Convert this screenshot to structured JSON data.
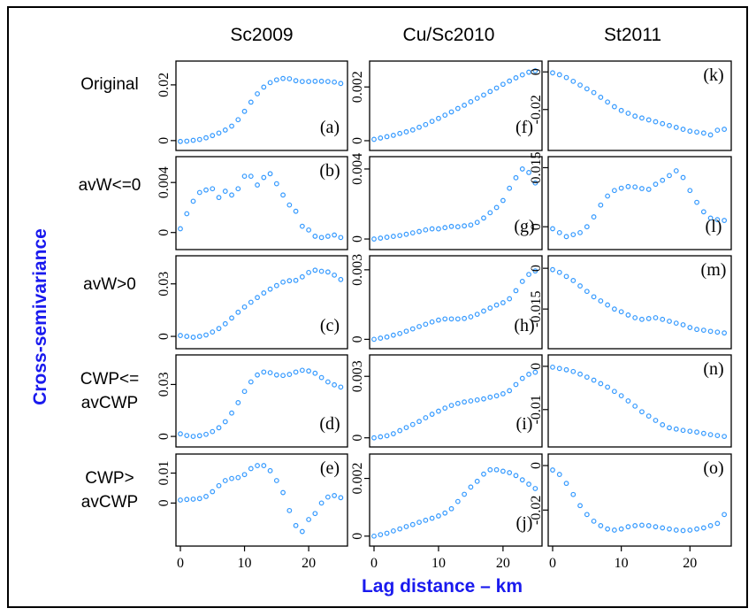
{
  "chart_data": {
    "type": "scatter",
    "column_titles": [
      "Sc2009",
      "Cu/Sc2010",
      "St2011"
    ],
    "row_labels": [
      [
        "Original"
      ],
      [
        "avW<=0"
      ],
      [
        "avW>0"
      ],
      [
        "CWP<=",
        "avCWP"
      ],
      [
        "CWP>",
        "avCWP"
      ]
    ],
    "xlabel": "Lag distance – km",
    "ylabel": "Cross-semivariance",
    "xlim": [
      0,
      25.5
    ],
    "x": [
      0,
      1,
      2,
      3,
      4,
      5,
      6,
      7,
      8,
      9,
      10,
      11,
      12,
      13,
      14,
      15,
      16,
      17,
      18,
      19,
      20,
      21,
      22,
      23,
      24,
      25
    ],
    "x_ticks": [
      "0",
      "10",
      "20"
    ],
    "x_tick_values": [
      0,
      10,
      20
    ],
    "marker_color": "#3399ff",
    "panels": [
      {
        "id": "a",
        "letter": "(a)",
        "ylim": [
          -0.001,
          0.026
        ],
        "yticks": [
          "0",
          "0.02"
        ],
        "ytick_values": [
          0,
          0.02
        ],
        "values": [
          -0.0003,
          -0.0002,
          0.0001,
          0.0004,
          0.001,
          0.0018,
          0.0027,
          0.0038,
          0.0052,
          0.0075,
          0.0105,
          0.0138,
          0.0168,
          0.0192,
          0.0208,
          0.0218,
          0.0223,
          0.0222,
          0.0215,
          0.0212,
          0.0212,
          0.0213,
          0.0213,
          0.0212,
          0.021,
          0.0205
        ]
      },
      {
        "id": "f",
        "letter": "(f)",
        "ylim": [
          -0.0001,
          0.0027
        ],
        "yticks": [
          "0",
          "0.002"
        ],
        "ytick_values": [
          0,
          0.002
        ],
        "values": [
          5e-05,
          0.0001,
          0.00015,
          0.0002,
          0.00027,
          0.00033,
          0.0004,
          0.0005,
          0.0006,
          0.00072,
          0.00083,
          0.00095,
          0.00107,
          0.0012,
          0.00132,
          0.00145,
          0.00158,
          0.0017,
          0.00183,
          0.00196,
          0.0021,
          0.00222,
          0.00234,
          0.00245,
          0.00255,
          0.0026
        ]
      },
      {
        "id": "k",
        "letter": "(k)",
        "ylim": [
          -0.038,
          0.002
        ],
        "yticks": [
          "0",
          "-0.02"
        ],
        "ytick_values": [
          0,
          -0.02
        ],
        "values": [
          -0.0005,
          -0.0015,
          -0.003,
          -0.005,
          -0.007,
          -0.009,
          -0.011,
          -0.0135,
          -0.016,
          -0.0185,
          -0.0205,
          -0.022,
          -0.0235,
          -0.0245,
          -0.0255,
          -0.0265,
          -0.0275,
          -0.0285,
          -0.0295,
          -0.0305,
          -0.0315,
          -0.032,
          -0.0325,
          -0.0335,
          -0.031,
          -0.0305
        ]
      },
      {
        "id": "b",
        "letter": "(b)",
        "ylim": [
          -0.0008,
          0.0055
        ],
        "yticks": [
          "0",
          "0.004"
        ],
        "ytick_values": [
          0,
          0.004
        ],
        "values": [
          0.0003,
          0.0015,
          0.0025,
          0.0032,
          0.0034,
          0.0035,
          0.0028,
          0.0033,
          0.003,
          0.0035,
          0.0045,
          0.0045,
          0.0038,
          0.0044,
          0.0047,
          0.0039,
          0.003,
          0.0022,
          0.0017,
          0.0005,
          0.0002,
          -0.0003,
          -0.0004,
          -0.0003,
          -0.0002,
          -0.0004
        ]
      },
      {
        "id": "g",
        "letter": "(g)",
        "ylim": [
          -0.0002,
          0.0043
        ],
        "yticks": [
          "0",
          "0.004"
        ],
        "ytick_values": [
          0,
          0.004
        ],
        "values": [
          0.0,
          5e-05,
          0.0001,
          0.00015,
          0.0002,
          0.00027,
          0.00035,
          0.00043,
          0.00052,
          0.00058,
          0.00058,
          0.00065,
          0.00072,
          0.0007,
          0.00075,
          0.0008,
          0.00095,
          0.0012,
          0.0015,
          0.0018,
          0.0022,
          0.0029,
          0.0035,
          0.004,
          0.0038,
          0.0032
        ]
      },
      {
        "id": "l",
        "letter": "(l)",
        "ylim": [
          -0.004,
          0.016
        ],
        "yticks": [
          "0",
          "0.015"
        ],
        "ytick_values": [
          0,
          0.015
        ],
        "values": [
          -0.0005,
          -0.0015,
          -0.0025,
          -0.002,
          -0.0015,
          0.0,
          0.0025,
          0.0055,
          0.0078,
          0.0092,
          0.0098,
          0.0102,
          0.0101,
          0.0097,
          0.0095,
          0.0108,
          0.0118,
          0.013,
          0.0142,
          0.0125,
          0.0092,
          0.0062,
          0.0038,
          0.0022,
          0.0018,
          0.0016
        ]
      },
      {
        "id": "c",
        "letter": "(c)",
        "ylim": [
          -0.003,
          0.042
        ],
        "yticks": [
          "0",
          "0.03"
        ],
        "ytick_values": [
          0,
          0.03
        ],
        "values": [
          0.0005,
          0.0,
          -0.0005,
          0.0,
          0.0008,
          0.0025,
          0.0045,
          0.0072,
          0.0105,
          0.0138,
          0.0168,
          0.0195,
          0.0222,
          0.0248,
          0.027,
          0.029,
          0.031,
          0.0318,
          0.032,
          0.034,
          0.0365,
          0.0378,
          0.0372,
          0.0368,
          0.035,
          0.0325
        ]
      },
      {
        "id": "h",
        "letter": "(h)",
        "ylim": [
          -0.0001,
          0.0033
        ],
        "yticks": [
          "0",
          "0.003"
        ],
        "ytick_values": [
          0,
          0.003
        ],
        "values": [
          0.0,
          5e-05,
          0.0001,
          0.00018,
          0.00025,
          0.00035,
          0.00045,
          0.00055,
          0.00065,
          0.00075,
          0.00083,
          0.00088,
          0.00088,
          0.00088,
          0.0009,
          0.00097,
          0.00108,
          0.00122,
          0.00135,
          0.00148,
          0.00158,
          0.00175,
          0.0021,
          0.0025,
          0.0028,
          0.00295
        ]
      },
      {
        "id": "m",
        "letter": "(m)",
        "ylim": [
          -0.027,
          0.002
        ],
        "yticks": [
          "-0.015",
          "0"
        ],
        "ytick_values": [
          -0.015,
          0
        ],
        "values": [
          -0.0005,
          -0.0015,
          -0.003,
          -0.0045,
          -0.0065,
          -0.0085,
          -0.0105,
          -0.012,
          -0.0135,
          -0.015,
          -0.016,
          -0.0172,
          -0.0182,
          -0.0188,
          -0.0185,
          -0.0182,
          -0.0188,
          -0.0195,
          -0.0202,
          -0.0208,
          -0.0218,
          -0.0225,
          -0.0228,
          -0.0232,
          -0.0235,
          -0.0238
        ]
      },
      {
        "id": "d",
        "letter": "(d)",
        "ylim": [
          -0.002,
          0.043
        ],
        "yticks": [
          "0",
          "0.03"
        ],
        "ytick_values": [
          0,
          0.03
        ],
        "values": [
          0.0015,
          0.0005,
          0.0,
          0.0004,
          0.0012,
          0.0028,
          0.005,
          0.0085,
          0.0135,
          0.0195,
          0.026,
          0.0315,
          0.0355,
          0.0372,
          0.0368,
          0.0355,
          0.0352,
          0.0358,
          0.0372,
          0.0382,
          0.0378,
          0.0365,
          0.034,
          0.0315,
          0.0298,
          0.0285
        ]
      },
      {
        "id": "i",
        "letter": "(i)",
        "ylim": [
          -0.0001,
          0.0037
        ],
        "yticks": [
          "0",
          "0.003"
        ],
        "ytick_values": [
          0,
          0.003
        ],
        "values": [
          0.0,
          5e-05,
          0.0001,
          0.0002,
          0.00035,
          0.0005,
          0.00065,
          0.0008,
          0.00098,
          0.00115,
          0.0013,
          0.00145,
          0.00158,
          0.00168,
          0.00175,
          0.0018,
          0.00185,
          0.0019,
          0.00198,
          0.00205,
          0.00215,
          0.0023,
          0.0026,
          0.0029,
          0.0031,
          0.0032
        ]
      },
      {
        "id": "n",
        "letter": "(n)",
        "ylim": [
          -0.017,
          0.001
        ],
        "yticks": [
          "0",
          "-0.01"
        ],
        "ytick_values": [
          0,
          -0.01
        ],
        "values": [
          -0.0002,
          -0.0005,
          -0.0008,
          -0.0012,
          -0.0018,
          -0.0025,
          -0.0032,
          -0.004,
          -0.0048,
          -0.0058,
          -0.0068,
          -0.008,
          -0.0092,
          -0.0105,
          -0.0115,
          -0.0125,
          -0.0135,
          -0.0142,
          -0.0145,
          -0.0148,
          -0.015,
          -0.0152,
          -0.0155,
          -0.0158,
          -0.016,
          -0.0162
        ]
      },
      {
        "id": "e",
        "letter": "(e)",
        "ylim": [
          -0.012,
          0.014
        ],
        "yticks": [
          "0",
          "0.01"
        ],
        "ytick_values": [
          0,
          0.01
        ],
        "values": [
          0.001,
          0.0012,
          0.0013,
          0.0015,
          0.0022,
          0.0038,
          0.0058,
          0.0075,
          0.0082,
          0.0085,
          0.0095,
          0.0115,
          0.0125,
          0.0125,
          0.0108,
          0.0075,
          0.0035,
          -0.0025,
          -0.0075,
          -0.0095,
          -0.0055,
          -0.0035,
          0.0,
          0.002,
          0.0025,
          0.0018
        ]
      },
      {
        "id": "j",
        "letter": "(j)",
        "ylim": [
          -0.0001,
          0.0026
        ],
        "yticks": [
          "0",
          "0.002"
        ],
        "ytick_values": [
          0,
          0.002
        ],
        "values": [
          0.0,
          5e-05,
          0.0001,
          0.00018,
          0.00025,
          0.00033,
          0.0004,
          0.00048,
          0.00055,
          0.00062,
          0.0007,
          0.0008,
          0.00095,
          0.0012,
          0.00145,
          0.0017,
          0.0019,
          0.00215,
          0.0023,
          0.0023,
          0.00225,
          0.0022,
          0.0021,
          0.00195,
          0.0018,
          0.00165
        ]
      },
      {
        "id": "o",
        "letter": "(o)",
        "ylim": [
          -0.033,
          0.002
        ],
        "yticks": [
          "0",
          "-0.02"
        ],
        "ytick_values": [
          0,
          -0.02
        ],
        "values": [
          -0.002,
          -0.004,
          -0.008,
          -0.013,
          -0.018,
          -0.022,
          -0.025,
          -0.027,
          -0.0285,
          -0.029,
          -0.0285,
          -0.0275,
          -0.027,
          -0.0268,
          -0.027,
          -0.0275,
          -0.028,
          -0.0285,
          -0.029,
          -0.0292,
          -0.029,
          -0.0285,
          -0.028,
          -0.027,
          -0.026,
          -0.022
        ]
      }
    ]
  }
}
